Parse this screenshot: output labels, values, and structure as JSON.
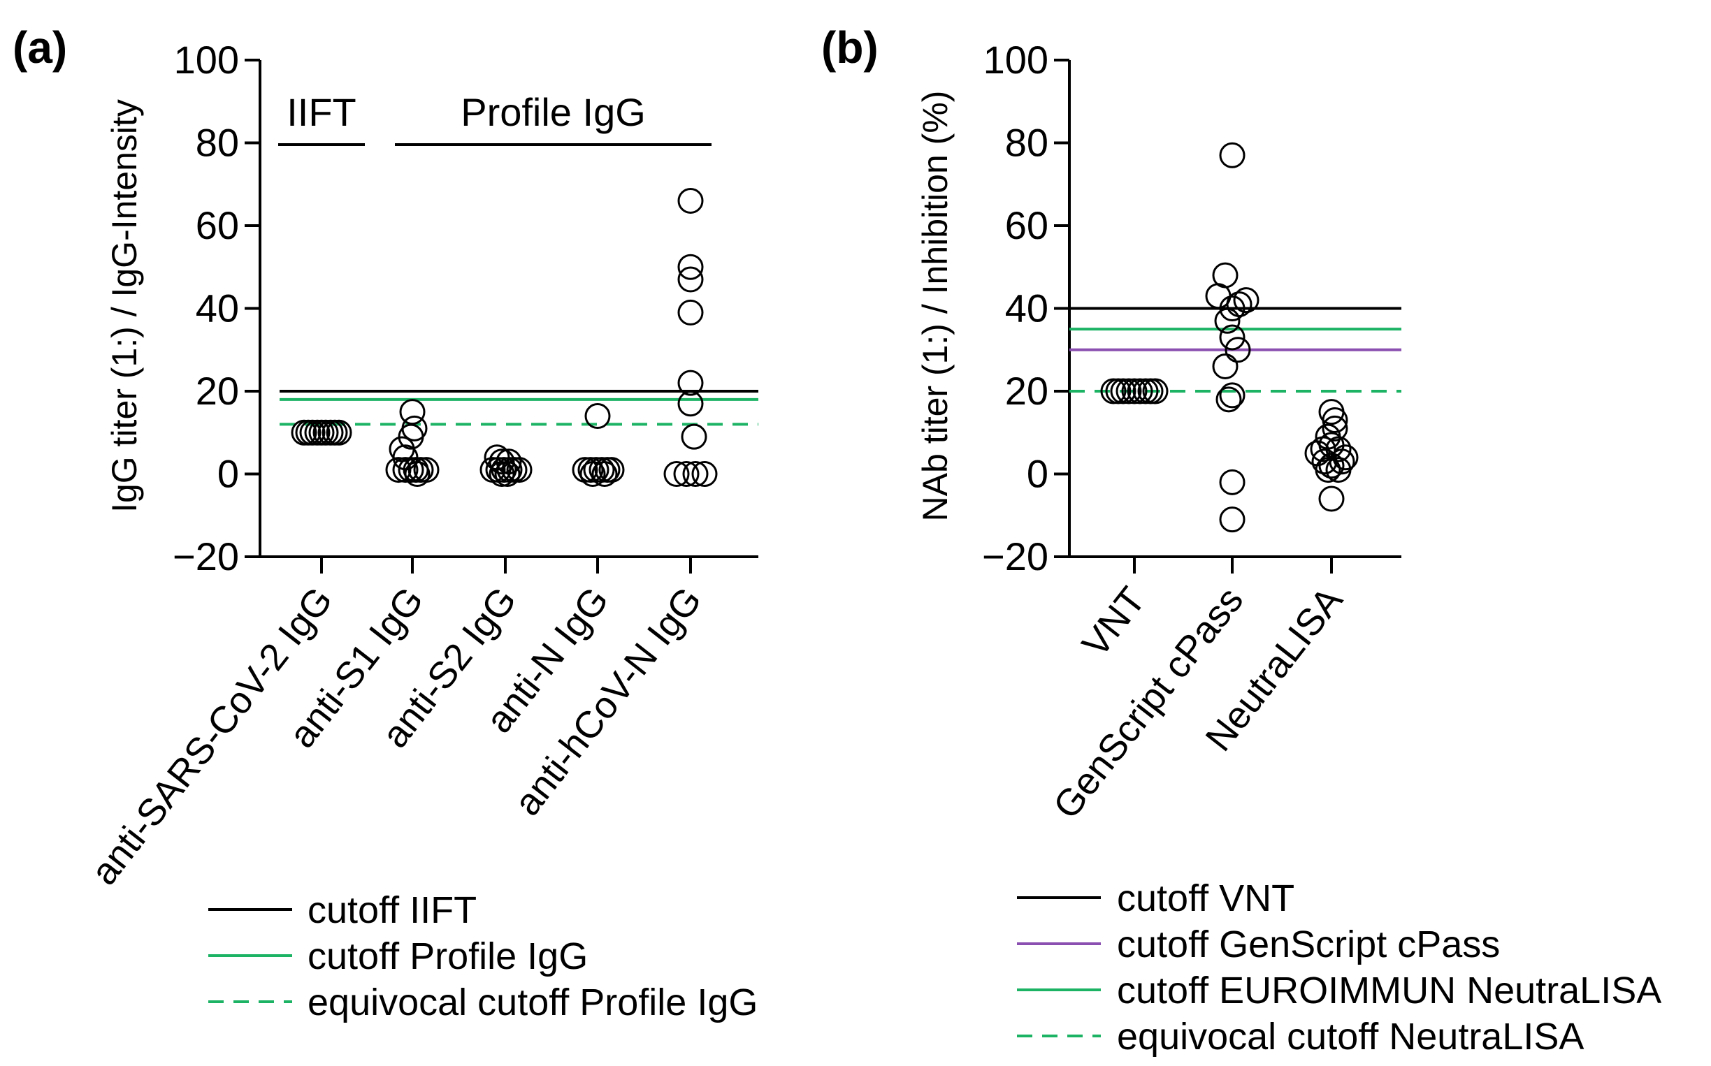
{
  "chart_data": [
    {
      "panel_label": "(a)",
      "type": "scatter",
      "ylabel": "IgG titer (1:) /  IgG-Intensity",
      "ylim": [
        -20,
        100
      ],
      "yticks": [
        -20,
        0,
        20,
        40,
        60,
        80,
        100
      ],
      "ytick_labels": [
        "−20",
        "0",
        "20",
        "40",
        "60",
        "80",
        "100"
      ],
      "categories": [
        "anti-SARS-CoV-2 IgG",
        "anti-S1 IgG",
        "anti-S2 IgG",
        "anti-N IgG",
        "anti-hCoV-N IgG"
      ],
      "groups": [
        {
          "label": "IIFT",
          "from": 0,
          "to": 0
        },
        {
          "label": "Profile IgG",
          "from": 1,
          "to": 4
        }
      ],
      "points": [
        [
          [
            -0.25,
            10
          ],
          [
            -0.19,
            10
          ],
          [
            -0.13,
            10
          ],
          [
            -0.06,
            10
          ],
          [
            0,
            10
          ],
          [
            0.06,
            10
          ],
          [
            0.13,
            10
          ],
          [
            0.19,
            10
          ],
          [
            0.25,
            10
          ]
        ],
        [
          [
            0,
            15
          ],
          [
            0.03,
            11
          ],
          [
            -0.02,
            9
          ],
          [
            -0.15,
            6
          ],
          [
            -0.1,
            4
          ],
          [
            -0.2,
            1
          ],
          [
            -0.1,
            1
          ],
          [
            -0.02,
            1
          ],
          [
            0.05,
            1
          ],
          [
            0.12,
            1
          ],
          [
            0.2,
            1
          ],
          [
            0.07,
            0
          ]
        ],
        [
          [
            -0.12,
            4
          ],
          [
            -0.05,
            3
          ],
          [
            0.05,
            3
          ],
          [
            -0.18,
            1
          ],
          [
            -0.1,
            1
          ],
          [
            -0.02,
            1
          ],
          [
            0.06,
            1
          ],
          [
            0.13,
            1
          ],
          [
            0.2,
            1
          ],
          [
            0.03,
            0
          ],
          [
            -0.05,
            0
          ]
        ],
        [
          [
            0,
            14
          ],
          [
            -0.18,
            1
          ],
          [
            -0.1,
            1
          ],
          [
            -0.02,
            1
          ],
          [
            0.06,
            1
          ],
          [
            0.14,
            1
          ],
          [
            0.2,
            1
          ],
          [
            -0.07,
            0
          ],
          [
            0.1,
            0
          ]
        ],
        [
          [
            0,
            66
          ],
          [
            0,
            50
          ],
          [
            0,
            47
          ],
          [
            0,
            39
          ],
          [
            0,
            22
          ],
          [
            0,
            17
          ],
          [
            0.05,
            9
          ],
          [
            -0.2,
            0
          ],
          [
            -0.06,
            0
          ],
          [
            0.07,
            0
          ],
          [
            0.2,
            0
          ]
        ]
      ],
      "cutoffs": [
        {
          "name": "cutoff IIFT",
          "value": 20,
          "color": "#000000",
          "dashed": false
        },
        {
          "name": "cutoff Profile IgG",
          "value": 18,
          "color": "#1db365",
          "dashed": false
        },
        {
          "name": "equivocal cutoff Profile IgG",
          "value": 12,
          "color": "#1db365",
          "dashed": true
        }
      ],
      "legend": [
        "cutoff IIFT",
        "cutoff Profile IgG",
        "equivocal cutoff Profile IgG"
      ],
      "legend_position": "bottom"
    },
    {
      "panel_label": "(b)",
      "type": "scatter",
      "ylabel": "NAb titer (1:) / Inhibition (%)",
      "ylim": [
        -20,
        100
      ],
      "yticks": [
        -20,
        0,
        20,
        40,
        60,
        80,
        100
      ],
      "ytick_labels": [
        "−20",
        "0",
        "20",
        "40",
        "60",
        "80",
        "100"
      ],
      "categories": [
        "VNT",
        "GenScript cPass",
        "NeutraLISA"
      ],
      "points": [
        [
          [
            -0.3,
            20
          ],
          [
            -0.23,
            20
          ],
          [
            -0.16,
            20
          ],
          [
            -0.08,
            20
          ],
          [
            0,
            20
          ],
          [
            0.08,
            20
          ],
          [
            0.16,
            20
          ],
          [
            0.23,
            20
          ],
          [
            0.3,
            20
          ]
        ],
        [
          [
            0,
            77
          ],
          [
            -0.1,
            48
          ],
          [
            -0.2,
            43
          ],
          [
            0.1,
            41
          ],
          [
            0.2,
            42
          ],
          [
            0,
            40
          ],
          [
            -0.07,
            37
          ],
          [
            0,
            33
          ],
          [
            0.08,
            30
          ],
          [
            -0.1,
            26
          ],
          [
            0,
            19
          ],
          [
            -0.05,
            18
          ],
          [
            0,
            -2
          ],
          [
            0,
            -11
          ]
        ],
        [
          [
            0,
            15
          ],
          [
            0.05,
            13
          ],
          [
            0.05,
            11
          ],
          [
            -0.05,
            9
          ],
          [
            0,
            7
          ],
          [
            -0.12,
            6
          ],
          [
            0.1,
            6
          ],
          [
            -0.2,
            5
          ],
          [
            0.2,
            4
          ],
          [
            -0.1,
            3
          ],
          [
            0,
            2
          ],
          [
            0.15,
            3
          ],
          [
            -0.05,
            1
          ],
          [
            0.1,
            1
          ],
          [
            0,
            -6
          ]
        ]
      ],
      "cutoffs": [
        {
          "name": "cutoff VNT",
          "value": 40,
          "color": "#000000",
          "dashed": false
        },
        {
          "name": "cutoff EUROIMMUN NeutraLISA",
          "value": 35,
          "color": "#1db365",
          "dashed": false
        },
        {
          "name": "cutoff GenScript cPass",
          "value": 30,
          "color": "#8a4fb0",
          "dashed": false
        },
        {
          "name": "equivocal cutoff NeutraLISA",
          "value": 20,
          "color": "#1db365",
          "dashed": true
        }
      ],
      "legend": [
        "cutoff VNT",
        "cutoff GenScript cPass",
        "cutoff EUROIMMUN NeutraLISA",
        "equivocal cutoff NeutraLISA"
      ],
      "legend_position": "bottom"
    }
  ]
}
